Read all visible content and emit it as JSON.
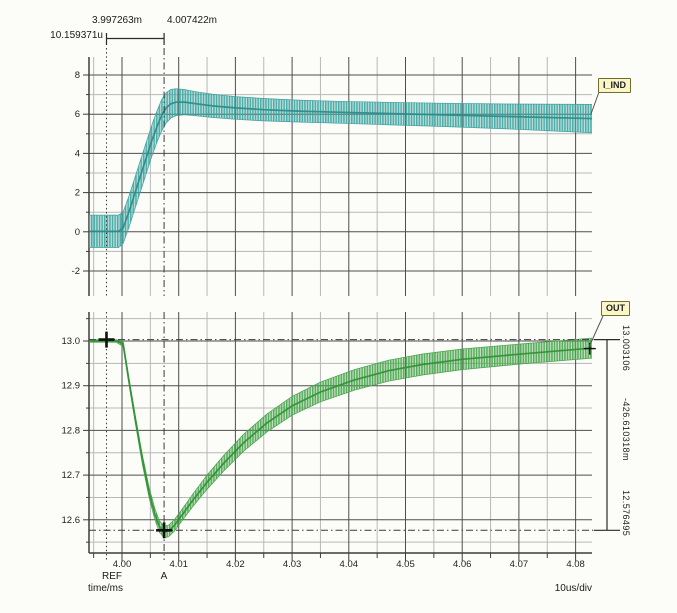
{
  "header_readouts": {
    "ref_time": "3.997263m",
    "a_time": "4.007422m",
    "delta_time": "10.159371u"
  },
  "side_readouts": {
    "top_value": "13.003106",
    "delta_value": "-426.610318m",
    "bottom_value": "12.576495"
  },
  "trace_tags": {
    "top": "I_IND",
    "bottom": "OUT"
  },
  "axis_footer": {
    "ref_label": "REF",
    "a_label": "A",
    "axis_label": "time/ms",
    "scale_label": "10us/div"
  },
  "cursors": {
    "ref_time_ms": 3.997263,
    "a_time_ms": 4.007422,
    "out_top_level": 13.003106,
    "out_bottom_level": 12.576495,
    "markers_out": [
      [
        3.997263,
        13.003106
      ],
      [
        4.007422,
        12.576495
      ],
      [
        4.0825,
        12.983
      ]
    ]
  },
  "chart_data": [
    {
      "type": "area",
      "name": "I_IND",
      "xlabel": "time/ms",
      "x_range": [
        3.9941,
        4.0832
      ],
      "y_range": [
        -3.0,
        8.95
      ],
      "yticks": {
        "values": [
          8,
          6,
          4,
          2,
          0,
          -2
        ],
        "labels": [
          "8",
          "6",
          "4",
          "2",
          "0",
          "-2"
        ]
      },
      "yminor": [
        7,
        5,
        3,
        1,
        -1
      ],
      "xticks": {
        "values": [
          4.0,
          4.01,
          4.02,
          4.03,
          4.04,
          4.05,
          4.06,
          4.07,
          4.08
        ],
        "labels": [
          "4.00",
          "4.01",
          "4.02",
          "4.03",
          "4.04",
          "4.05",
          "4.06",
          "4.07",
          "4.08"
        ]
      },
      "xminor": [
        3.995,
        4.005,
        4.015,
        4.025,
        4.035,
        4.045,
        4.055,
        4.065,
        4.075
      ],
      "grid": true,
      "color": "#3ba3a0",
      "center_color": "#2a8a87",
      "envelope": {
        "t": [
          3.9941,
          3.996,
          3.998,
          3.9994,
          4.0002,
          4.0012,
          4.0022,
          4.0032,
          4.0042,
          4.0052,
          4.0062,
          4.007,
          4.0078,
          4.0086,
          4.0095,
          4.011,
          4.013,
          4.016,
          4.02,
          4.025,
          4.031,
          4.038,
          4.046,
          4.056,
          4.068,
          4.0832
        ],
        "upper": [
          0.85,
          0.85,
          0.85,
          0.85,
          1.0,
          1.8,
          2.7,
          3.6,
          4.5,
          5.4,
          6.2,
          6.75,
          7.1,
          7.26,
          7.3,
          7.26,
          7.15,
          7.02,
          6.9,
          6.8,
          6.72,
          6.66,
          6.61,
          6.56,
          6.52,
          6.5
        ],
        "lower": [
          -0.8,
          -0.8,
          -0.8,
          -0.8,
          -0.6,
          0.2,
          1.1,
          2.0,
          2.9,
          3.8,
          4.6,
          5.15,
          5.55,
          5.8,
          5.92,
          5.97,
          5.92,
          5.83,
          5.74,
          5.66,
          5.6,
          5.54,
          5.47,
          5.38,
          5.25,
          5.05
        ]
      }
    },
    {
      "type": "area",
      "name": "OUT",
      "xlabel": "time/ms",
      "x_range": [
        3.9941,
        4.0832
      ],
      "y_range": [
        12.52,
        13.07
      ],
      "yticks": {
        "values": [
          13.0,
          12.9,
          12.8,
          12.7,
          12.6
        ],
        "labels": [
          "13.0",
          "12.9",
          "12.8",
          "12.7",
          "12.6"
        ]
      },
      "yminor": [
        13.05,
        12.95,
        12.85,
        12.75,
        12.65,
        12.55
      ],
      "xticks": {
        "values": [
          4.0,
          4.01,
          4.02,
          4.03,
          4.04,
          4.05,
          4.06,
          4.07,
          4.08
        ],
        "labels": [
          "4.00",
          "4.01",
          "4.02",
          "4.03",
          "4.04",
          "4.05",
          "4.06",
          "4.07",
          "4.08"
        ]
      },
      "xminor": [
        3.995,
        4.005,
        4.015,
        4.025,
        4.035,
        4.045,
        4.055,
        4.065,
        4.075
      ],
      "grid": true,
      "color": "#46a44b",
      "center_color": "#2f8f34",
      "envelope": {
        "t": [
          3.9941,
          3.9965,
          3.999,
          4.0002,
          4.0012,
          4.0024,
          4.0036,
          4.0048,
          4.0058,
          4.0066,
          4.0074,
          4.0082,
          4.0092,
          4.0105,
          4.0125,
          4.015,
          4.018,
          4.0215,
          4.0255,
          4.03,
          4.035,
          4.041,
          4.047,
          4.053,
          4.06,
          4.07,
          4.0832
        ],
        "upper": [
          13.003,
          13.003,
          13.003,
          13.0,
          12.92,
          12.83,
          12.745,
          12.672,
          12.625,
          12.598,
          12.586,
          12.588,
          12.6,
          12.622,
          12.658,
          12.7,
          12.745,
          12.792,
          12.836,
          12.876,
          12.908,
          12.936,
          12.957,
          12.971,
          12.982,
          12.993,
          13.007
        ],
        "lower": [
          12.997,
          12.997,
          12.997,
          12.988,
          12.905,
          12.812,
          12.724,
          12.648,
          12.6,
          12.572,
          12.56,
          12.562,
          12.574,
          12.596,
          12.63,
          12.668,
          12.71,
          12.754,
          12.796,
          12.834,
          12.864,
          12.89,
          12.91,
          12.924,
          12.936,
          12.948,
          12.962
        ]
      }
    }
  ]
}
